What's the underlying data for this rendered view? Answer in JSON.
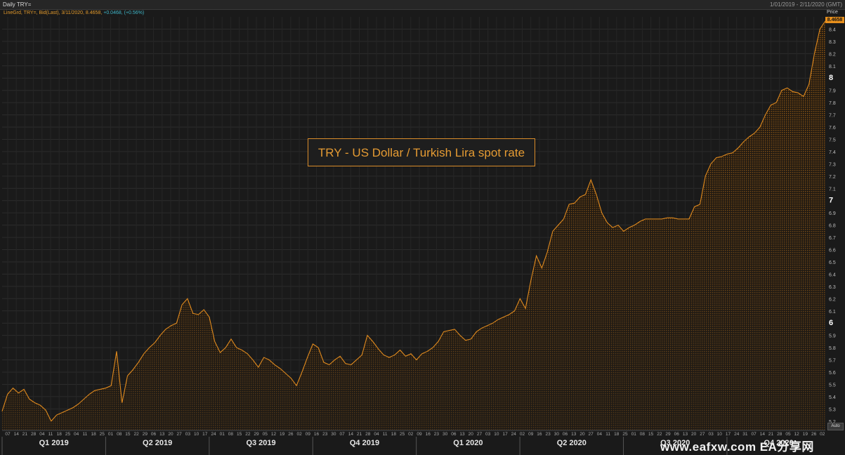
{
  "window": {
    "title": "Daily TRY=",
    "date_range": "1/01/2019 - 2/11/2020 (GMT)"
  },
  "legend": {
    "series_label": "LineGrd, TRY=, Bid(Last), 3/11/2020, 8.4658,",
    "change": "+0.0468, (+0.56%)"
  },
  "annotation": "TRY - US Dollar / Turkish Lira spot rate",
  "price_header": "Price",
  "last_value_label": "8.4658",
  "auto_button": "Auto",
  "watermark": "www.eafxw.com   EA分享网",
  "colors": {
    "line": "#e08a1e",
    "fill": "#e08a1e",
    "change": "#3fb7c9",
    "background": "#1a1a1a",
    "grid": "#2c2c2c"
  },
  "chart_data": {
    "type": "area",
    "title": "TRY - US Dollar / Turkish Lira spot rate",
    "xlabel": "",
    "ylabel": "Price",
    "ylim": [
      5.13,
      8.5
    ],
    "y_ticks": [
      5.2,
      5.3,
      5.4,
      5.5,
      5.6,
      5.7,
      5.8,
      5.9,
      6,
      6.1,
      6.2,
      6.3,
      6.4,
      6.5,
      6.6,
      6.7,
      6.8,
      6.9,
      7,
      7.1,
      7.2,
      7.3,
      7.4,
      7.5,
      7.6,
      7.7,
      7.8,
      7.9,
      8,
      8.1,
      8.2,
      8.3,
      8.4
    ],
    "grid": true,
    "last_value": 8.4658,
    "quarters": [
      "Q1 2019",
      "Q2 2019",
      "Q3 2019",
      "Q4 2019",
      "Q1 2020",
      "Q2 2020",
      "Q3 2020",
      "Q4 2020"
    ],
    "day_ticks": [
      "07",
      "14",
      "21",
      "28",
      "04",
      "11",
      "18",
      "25",
      "04",
      "11",
      "18",
      "25",
      "01",
      "08",
      "15",
      "22",
      "29",
      "06",
      "13",
      "20",
      "27",
      "03",
      "10",
      "17",
      "24",
      "01",
      "08",
      "15",
      "22",
      "29",
      "05",
      "12",
      "19",
      "26",
      "02",
      "09",
      "16",
      "23",
      "30",
      "07",
      "14",
      "21",
      "28",
      "04",
      "11",
      "18",
      "25",
      "02",
      "09",
      "16",
      "23",
      "30",
      "06",
      "13",
      "20",
      "27",
      "03",
      "10",
      "17",
      "24",
      "02",
      "09",
      "16",
      "23",
      "30",
      "06",
      "13",
      "20",
      "27",
      "04",
      "11",
      "18",
      "25",
      "01",
      "08",
      "15",
      "22",
      "29",
      "06",
      "13",
      "20",
      "27",
      "03",
      "10",
      "17",
      "24",
      "31",
      "07",
      "14",
      "21",
      "28",
      "05",
      "12",
      "19",
      "26",
      "02"
    ],
    "series": [
      {
        "values": [
          5.28,
          5.42,
          5.47,
          5.43,
          5.46,
          5.38,
          5.35,
          5.33,
          5.29,
          5.2,
          5.25,
          5.27,
          5.29,
          5.31,
          5.34,
          5.38,
          5.42,
          5.45,
          5.46,
          5.47,
          5.49,
          5.77,
          5.35,
          5.57,
          5.62,
          5.68,
          5.75,
          5.8,
          5.84,
          5.9,
          5.95,
          5.98,
          6,
          6.15,
          6.2,
          6.08,
          6.07,
          6.11,
          6.05,
          5.85,
          5.76,
          5.8,
          5.87,
          5.8,
          5.78,
          5.75,
          5.7,
          5.64,
          5.72,
          5.7,
          5.66,
          5.63,
          5.59,
          5.55,
          5.49,
          5.6,
          5.72,
          5.83,
          5.8,
          5.68,
          5.66,
          5.7,
          5.73,
          5.67,
          5.66,
          5.7,
          5.74,
          5.9,
          5.85,
          5.79,
          5.74,
          5.72,
          5.74,
          5.78,
          5.73,
          5.75,
          5.7,
          5.75,
          5.77,
          5.8,
          5.85,
          5.93,
          5.94,
          5.95,
          5.9,
          5.86,
          5.87,
          5.93,
          5.96,
          5.98,
          6,
          6.03,
          6.05,
          6.07,
          6.1,
          6.2,
          6.12,
          6.35,
          6.55,
          6.45,
          6.58,
          6.75,
          6.8,
          6.85,
          6.97,
          6.98,
          7.03,
          7.05,
          7.17,
          7.05,
          6.9,
          6.82,
          6.78,
          6.8,
          6.75,
          6.78,
          6.8,
          6.83,
          6.85,
          6.85,
          6.85,
          6.85,
          6.86,
          6.86,
          6.85,
          6.85,
          6.85,
          6.95,
          6.97,
          7.2,
          7.3,
          7.35,
          7.36,
          7.38,
          7.39,
          7.43,
          7.48,
          7.52,
          7.55,
          7.6,
          7.7,
          7.78,
          7.8,
          7.9,
          7.92,
          7.89,
          7.88,
          7.85,
          7.95,
          8.2,
          8.4,
          8.4658
        ]
      }
    ]
  }
}
